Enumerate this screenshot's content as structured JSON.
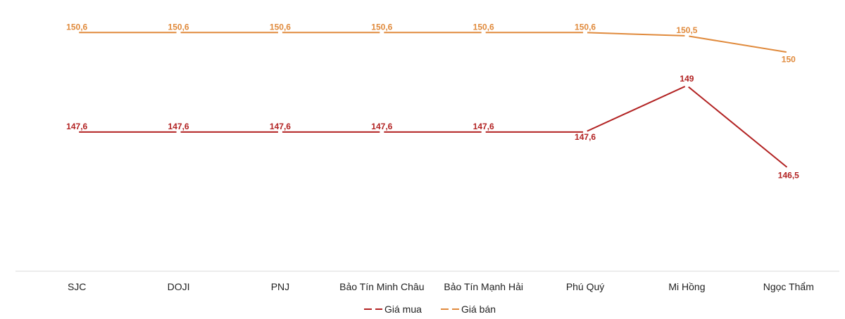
{
  "chart_data": {
    "type": "line",
    "title": "",
    "xlabel": "",
    "ylabel": "",
    "categories": [
      "SJC",
      "DOJI",
      "PNJ",
      "Bảo Tín Minh Châu",
      "Bảo Tín Mạnh Hải",
      "Phú Quý",
      "Mi Hồng",
      "Ngọc Thẩm"
    ],
    "series": [
      {
        "name": "Giá mua",
        "color": "#b22222",
        "values": [
          147.6,
          147.6,
          147.6,
          147.6,
          147.6,
          147.6,
          149,
          146.5
        ],
        "labels": [
          "147,6",
          "147,6",
          "147,6",
          "147,6",
          "147,6",
          "147,6",
          "149",
          "146,5"
        ]
      },
      {
        "name": "Giá bán",
        "color": "#e08a3c",
        "values": [
          150.6,
          150.6,
          150.6,
          150.6,
          150.6,
          150.6,
          150.5,
          150
        ],
        "labels": [
          "150,6",
          "150,6",
          "150,6",
          "150,6",
          "150,6",
          "150,6",
          "150,5",
          "150"
        ]
      }
    ],
    "ylim": [
      143.4,
      151.2
    ],
    "grid": false,
    "legend_position": "bottom"
  }
}
